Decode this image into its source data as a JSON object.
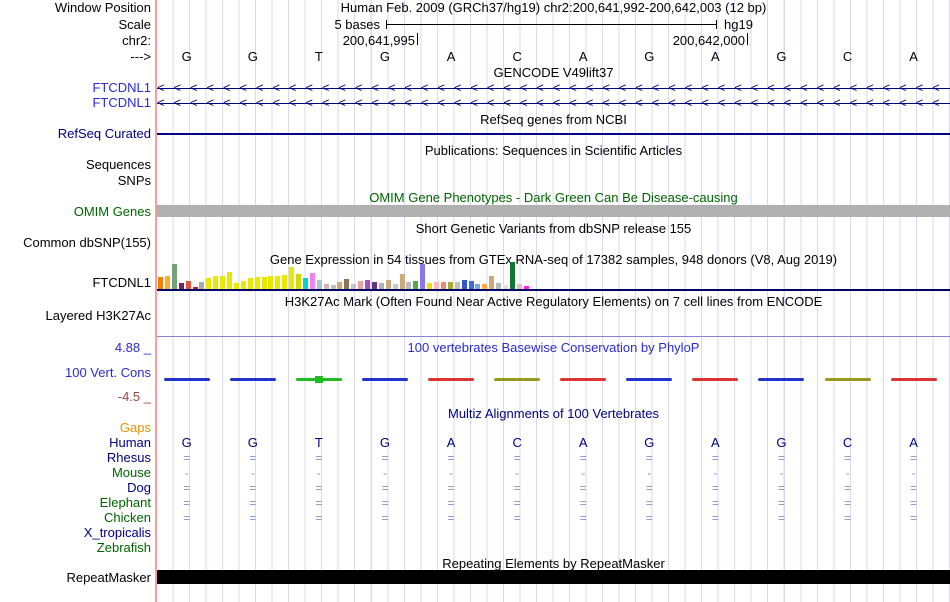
{
  "header": {
    "window_position_label": "Window Position",
    "position_text": "Human Feb. 2009 (GRCh37/hg19)   chr2:200,641,992-200,642,003 (12 bp)",
    "scale_label": "Scale",
    "scale_bases": "5 bases",
    "assembly": "hg19",
    "chrom_label": "chr2:",
    "coord_left": "200,641,995",
    "coord_right": "200,642,000",
    "strand_arrow": "--->"
  },
  "sequence": [
    "G",
    "G",
    "T",
    "G",
    "A",
    "C",
    "A",
    "G",
    "A",
    "G",
    "C",
    "A"
  ],
  "tracks": {
    "gencode": {
      "title": "GENCODE V49lift37",
      "genes": [
        {
          "label": "FTCDNL1",
          "arrows": "<<<<<<<<<<<<<<<<<<<<<<<<<<<<<<<<<<<<<<<<<<<<<<<<"
        },
        {
          "label": "FTCDNL1",
          "arrows": "<<<<<<<<<<<<<<<<<<<<<<<<<<<<<<<<<<<<<<<<<<<<<<<<"
        }
      ]
    },
    "refseq": {
      "title": "RefSeq genes from NCBI",
      "label": "RefSeq Curated"
    },
    "publications": {
      "title": "Publications: Sequences in Scientific Articles",
      "label_sequences": "Sequences",
      "label_snps": "SNPs"
    },
    "omim": {
      "title": "OMIM Gene Phenotypes - Dark Green Can Be Disease-causing",
      "label": "OMIM Genes",
      "bar_color": "#b0b0b0"
    },
    "dbsnp": {
      "title": "Short Genetic Variants from dbSNP release 155",
      "label": "Common dbSNP(155)"
    },
    "gtex": {
      "title": "Gene Expression in 54 tissues from GTEx RNA-seq of 17382 samples, 948 donors (V8, Aug 2019)",
      "label": "FTCDNL1",
      "bars": [
        {
          "c": "#f08000",
          "h": 12
        },
        {
          "c": "#ffaa33",
          "h": 13
        },
        {
          "c": "#74a07c",
          "h": 25
        },
        {
          "c": "#772255",
          "h": 6
        },
        {
          "c": "#dd5544",
          "h": 8
        },
        {
          "c": "#cc1111",
          "h": 2
        },
        {
          "c": "#aaaaaa",
          "h": 7
        },
        {
          "c": "#e8e800",
          "h": 11
        },
        {
          "c": "#e8e800",
          "h": 13
        },
        {
          "c": "#e8e800",
          "h": 13
        },
        {
          "c": "#e8e800",
          "h": 17
        },
        {
          "c": "#e8e800",
          "h": 6
        },
        {
          "c": "#e8e800",
          "h": 8
        },
        {
          "c": "#e8e800",
          "h": 11
        },
        {
          "c": "#e8e800",
          "h": 12
        },
        {
          "c": "#e8e800",
          "h": 12
        },
        {
          "c": "#e8e800",
          "h": 13
        },
        {
          "c": "#e8e800",
          "h": 13
        },
        {
          "c": "#e8e800",
          "h": 14
        },
        {
          "c": "#e8e800",
          "h": 22
        },
        {
          "c": "#d8d800",
          "h": 15
        },
        {
          "c": "#00d5d5",
          "h": 11
        },
        {
          "c": "#ee82ee",
          "h": 16
        },
        {
          "c": "#a8c4cc",
          "h": 9
        },
        {
          "c": "#d8b0b0",
          "h": 5
        },
        {
          "c": "#c0c0c0",
          "h": 4
        },
        {
          "c": "#d2a679",
          "h": 7
        },
        {
          "c": "#8b7355",
          "h": 10
        },
        {
          "c": "#c4c4c4",
          "h": 5
        },
        {
          "c": "#e8a0a0",
          "h": 8
        },
        {
          "c": "#9955bb",
          "h": 9
        },
        {
          "c": "#663388",
          "h": 7
        },
        {
          "c": "#b0b0b0",
          "h": 6
        },
        {
          "c": "#cdaa7d",
          "h": 9
        },
        {
          "c": "#c8c8c8",
          "h": 5
        },
        {
          "c": "#cdaa7d",
          "h": 15
        },
        {
          "c": "#bdbdbd",
          "h": 7
        },
        {
          "c": "#55aa44",
          "h": 8
        },
        {
          "c": "#8877ee",
          "h": 25
        },
        {
          "c": "#eedd00",
          "h": 6
        },
        {
          "c": "#ffb6c1",
          "h": 7
        },
        {
          "c": "#ee8877",
          "h": 7
        },
        {
          "c": "#aaa833",
          "h": 7
        },
        {
          "c": "#c0c0c0",
          "h": 7
        },
        {
          "c": "#3355cc",
          "h": 9
        },
        {
          "c": "#4466dd",
          "h": 8
        },
        {
          "c": "#77aadd",
          "h": 5
        },
        {
          "c": "#ffaa44",
          "h": 5
        },
        {
          "c": "#cdaa7d",
          "h": 13
        },
        {
          "c": "#b8b8b8",
          "h": 6
        },
        {
          "c": "#f0dcdc",
          "h": 4
        },
        {
          "c": "#117733",
          "h": 27
        },
        {
          "c": "#e0c0c0",
          "h": 5
        },
        {
          "c": "#ff22ff",
          "h": 3
        }
      ]
    },
    "h3k27ac": {
      "title": "H3K27Ac Mark (Often Found Near Active Regulatory Elements) on 7 cell lines from ENCODE",
      "label": "Layered H3K27Ac"
    },
    "cons": {
      "title": "100 vertebrates Basewise Conservation by PhyloP",
      "label": "100 Vert. Cons",
      "max_label": "4.88 _",
      "min_label": "-4.5 _",
      "marks": [
        {
          "color": "#2233cc",
          "box": false
        },
        {
          "color": "#2233cc",
          "box": false
        },
        {
          "color": "#22bb22",
          "box": true
        },
        {
          "color": "#2233cc",
          "box": false
        },
        {
          "color": "#dd3333",
          "box": false
        },
        {
          "color": "#999922",
          "box": false
        },
        {
          "color": "#dd3333",
          "box": false
        },
        {
          "color": "#2233cc",
          "box": false
        },
        {
          "color": "#dd3333",
          "box": false
        },
        {
          "color": "#2233cc",
          "box": false
        },
        {
          "color": "#999922",
          "box": false
        },
        {
          "color": "#dd3333",
          "box": false
        }
      ]
    },
    "multiz": {
      "title": "Multiz Alignments of 100 Vertebrates",
      "species": [
        {
          "label": "Gaps",
          "color": "#e69500",
          "glyph": ""
        },
        {
          "label": "Human",
          "color": "#000080",
          "glyph": "seq"
        },
        {
          "label": "Rhesus",
          "color": "#000080",
          "glyph": "="
        },
        {
          "label": "Mouse",
          "color": "#006400",
          "glyph": "-"
        },
        {
          "label": "Dog",
          "color": "#000080",
          "glyph": "="
        },
        {
          "label": "Elephant",
          "color": "#006400",
          "glyph": "="
        },
        {
          "label": "Chicken",
          "color": "#006400",
          "glyph": "="
        },
        {
          "label": "X_tropicalis",
          "color": "#000080",
          "glyph": ""
        },
        {
          "label": "Zebrafish",
          "color": "#006400",
          "glyph": ""
        }
      ]
    },
    "repeatmasker": {
      "title": "Repeating Elements by RepeatMasker",
      "label": "RepeatMasker"
    }
  }
}
